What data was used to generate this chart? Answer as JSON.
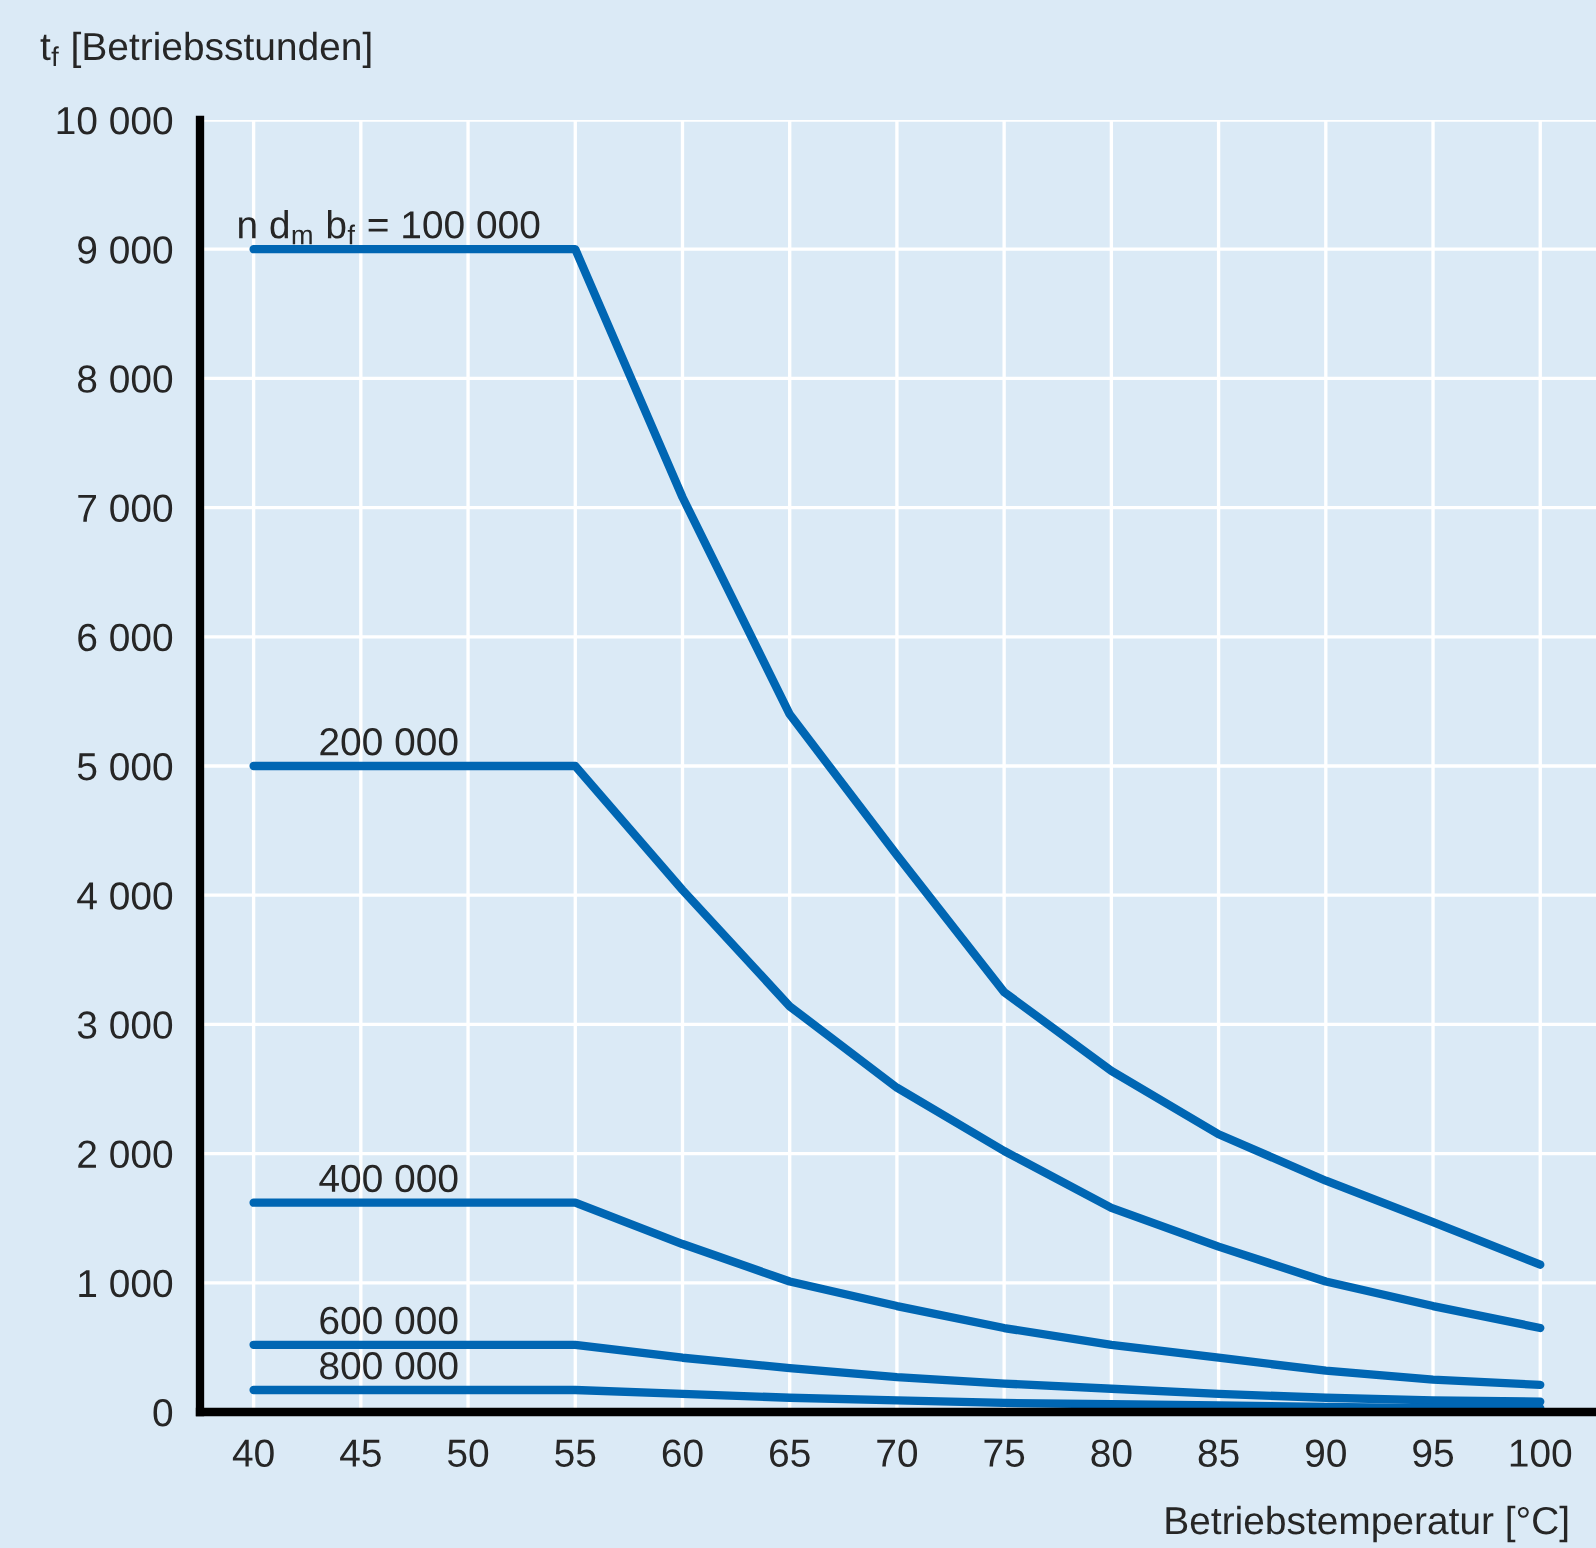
{
  "chart_data": {
    "type": "line",
    "ylabel": "t$_{f}$ [Betriebsstunden]",
    "xlabel": "Betriebstemperatur [°C]",
    "x": [
      40,
      45,
      50,
      55,
      60,
      65,
      70,
      75,
      80,
      85,
      90,
      95,
      100
    ],
    "series": [
      {
        "name": "n d$_{m}$ b$_{f}$ = 100 000",
        "color": "#0066b3",
        "values": [
          9000,
          9000,
          9000,
          9000,
          7080,
          5400,
          4310,
          3250,
          2640,
          2150,
          1790,
          1470,
          1140
        ]
      },
      {
        "name": "200 000",
        "color": "#0066b3",
        "values": [
          5000,
          5000,
          5000,
          5000,
          4040,
          3140,
          2510,
          2020,
          1580,
          1280,
          1010,
          820,
          650
        ]
      },
      {
        "name": "400 000",
        "color": "#0066b3",
        "values": [
          1620,
          1620,
          1620,
          1620,
          1300,
          1010,
          820,
          650,
          520,
          420,
          320,
          250,
          210
        ]
      },
      {
        "name": "600 000",
        "color": "#0066b3",
        "values": [
          520,
          520,
          520,
          520,
          420,
          340,
          270,
          220,
          180,
          140,
          110,
          90,
          80
        ]
      },
      {
        "name": "800 000",
        "color": "#0066b3",
        "values": [
          170,
          170,
          170,
          170,
          140,
          110,
          90,
          70,
          60,
          50,
          40,
          30,
          30
        ]
      }
    ],
    "xlim": [
      37.5,
      102.6
    ],
    "xticks": [
      40,
      45,
      50,
      55,
      60,
      65,
      70,
      75,
      80,
      85,
      90,
      95,
      100
    ],
    "ylim": [
      0,
      10000
    ],
    "yticks": [
      {
        "value": 0,
        "label": "0"
      },
      {
        "value": 1000,
        "label": "1 000"
      },
      {
        "value": 2000,
        "label": "2 000"
      },
      {
        "value": 3000,
        "label": "3 000"
      },
      {
        "value": 4000,
        "label": "4 000"
      },
      {
        "value": 5000,
        "label": "5 000"
      },
      {
        "value": 6000,
        "label": "6 000"
      },
      {
        "value": 7000,
        "label": "7 000"
      },
      {
        "value": 8000,
        "label": "8 000"
      },
      {
        "value": 9000,
        "label": "9 000"
      },
      {
        "value": 10000,
        "label": "10 000"
      }
    ],
    "grid": true,
    "marker": "none",
    "line_style": "solid"
  }
}
